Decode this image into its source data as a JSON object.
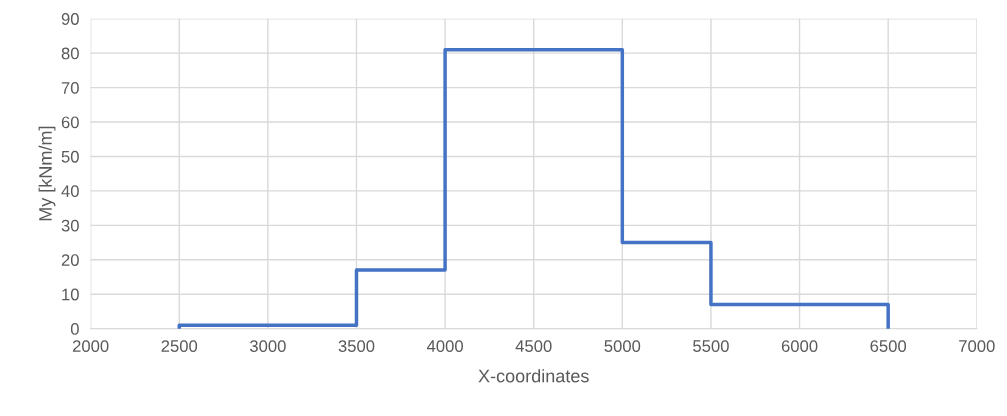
{
  "chart_data": {
    "type": "line",
    "xlabel": "X-coordinates",
    "ylabel": "My [kNm/m]",
    "x": [
      2500,
      2500,
      3500,
      3500,
      4000,
      4000,
      5000,
      5000,
      5500,
      5500,
      6500,
      6500
    ],
    "series": [
      {
        "color": "#4472c4",
        "values": [
          0,
          1,
          1,
          17,
          17,
          81,
          81,
          25,
          25,
          7,
          7,
          0
        ]
      }
    ],
    "xlim": [
      2000,
      7000
    ],
    "xticks": [
      2000,
      2500,
      3000,
      3500,
      4000,
      4500,
      5000,
      5500,
      6000,
      6500,
      7000
    ],
    "ylim": [
      0,
      90
    ],
    "yticks": [
      0,
      10,
      20,
      30,
      40,
      50,
      60,
      70,
      80,
      90
    ],
    "grid": true,
    "marker": "none",
    "line_style": "solid"
  }
}
